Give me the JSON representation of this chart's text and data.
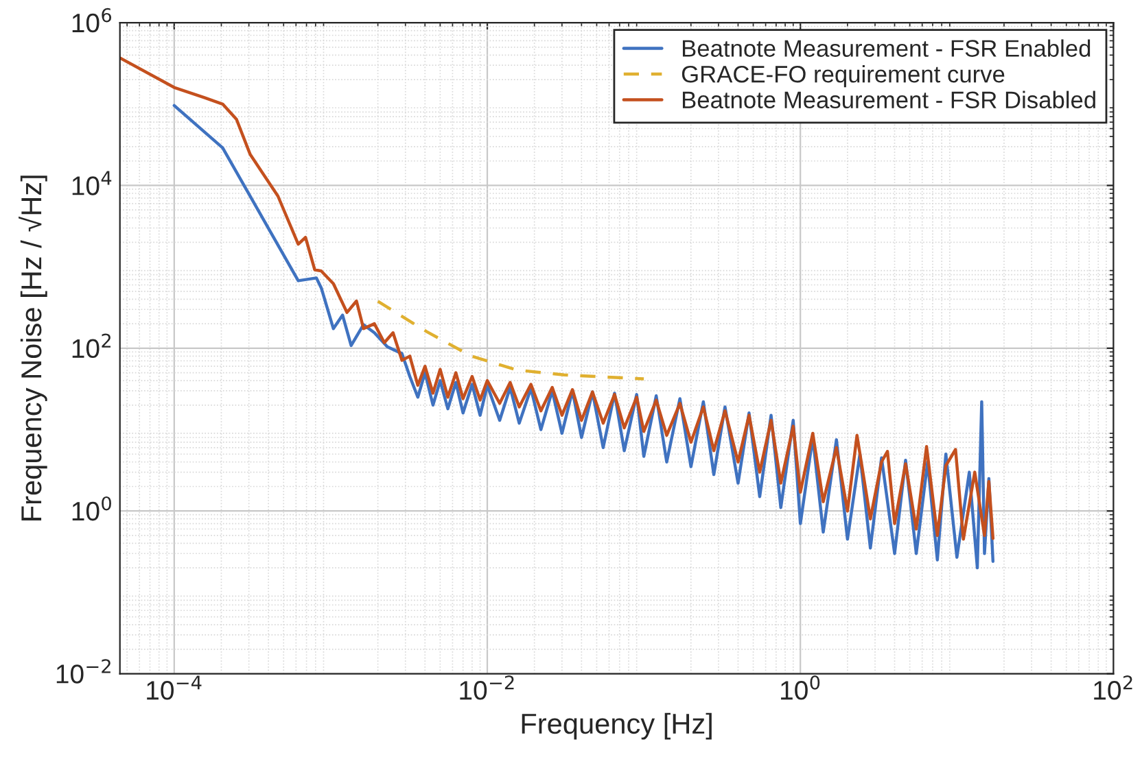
{
  "chart_data": {
    "type": "line",
    "xlabel": "Frequency [Hz]",
    "ylabel": "Frequency Noise [Hz / √Hz]",
    "log": "xy",
    "grid": true,
    "legend": "top right",
    "xlim": [
      4.5e-05,
      100
    ],
    "ylim": [
      0.01,
      1000000
    ],
    "xticks": [
      {
        "value": 0.0001,
        "label": "10$^{−4}$"
      },
      {
        "value": 0.01,
        "label": "10$^{−2}$"
      },
      {
        "value": 1,
        "label": "10$^{0}$"
      },
      {
        "value": 100,
        "label": "10$^{2}$"
      }
    ],
    "yticks": [
      {
        "value": 0.01,
        "label": "10$^{−2}$"
      },
      {
        "value": 1,
        "label": "10$^{0}$"
      },
      {
        "value": 100,
        "label": "10$^{2}$"
      },
      {
        "value": 10000,
        "label": "10$^{4}$"
      },
      {
        "value": 1000000,
        "label": "10$^{6}$"
      }
    ],
    "series": [
      {
        "name": "Beatnote Measurement - FSR Enabled",
        "color": "#3f72c0",
        "line_style": "solid",
        "x": [
          0.0001,
          0.000204,
          0.00062,
          0.00081,
          0.00087,
          0.00104,
          0.00119,
          0.00135,
          0.00162,
          0.0019,
          0.0023,
          0.00285,
          0.0032,
          0.0036,
          0.004,
          0.0045,
          0.005,
          0.0056,
          0.0063,
          0.007,
          0.008,
          0.009,
          0.01,
          0.012,
          0.014,
          0.016,
          0.019,
          0.022,
          0.026,
          0.03,
          0.035,
          0.04,
          0.047,
          0.055,
          0.065,
          0.075,
          0.09,
          0.1,
          0.12,
          0.14,
          0.17,
          0.2,
          0.24,
          0.28,
          0.33,
          0.4,
          0.47,
          0.55,
          0.65,
          0.75,
          0.9,
          1.0,
          1.2,
          1.4,
          1.7,
          2.0,
          2.4,
          2.8,
          3.3,
          4,
          4.7,
          5.5,
          6.5,
          7.5,
          8.5,
          10,
          12,
          13.5,
          14.4,
          15,
          16,
          17
        ],
        "values": [
          96000,
          29000,
          675,
          730,
          550,
          174,
          255,
          108,
          195,
          155,
          104,
          86,
          45,
          25,
          50,
          20,
          40,
          18,
          38,
          16,
          36,
          15,
          35,
          13,
          33,
          12,
          32,
          10,
          30,
          9,
          30,
          8,
          29,
          6,
          28,
          5.5,
          27,
          4.7,
          26,
          4,
          24,
          3.5,
          22,
          2.8,
          19,
          2.2,
          16,
          1.5,
          15,
          1.1,
          13,
          0.7,
          8,
          0.55,
          7.5,
          0.45,
          5,
          0.35,
          4.5,
          0.3,
          4.2,
          0.3,
          4,
          0.25,
          5,
          0.27,
          3,
          0.2,
          22,
          0.3,
          2.5,
          0.24
        ]
      },
      {
        "name": "GRACE-FO requirement curve",
        "color": "#e0b030",
        "line_style": "dashed",
        "x": [
          0.002,
          0.0041,
          0.0079,
          0.0155,
          0.031,
          0.1
        ],
        "values": [
          377,
          160,
          80,
          54,
          47,
          42
        ]
      },
      {
        "name": "Beatnote Measurement - FSR Disabled",
        "color": "#c4501e",
        "line_style": "solid",
        "x": [
          4.5e-05,
          0.0001,
          0.000156,
          0.000204,
          0.00025,
          0.000306,
          0.00046,
          0.00062,
          0.00069,
          0.00079,
          0.00087,
          0.00104,
          0.00127,
          0.00146,
          0.00162,
          0.0019,
          0.0022,
          0.0025,
          0.00285,
          0.0032,
          0.0036,
          0.004,
          0.0045,
          0.005,
          0.0056,
          0.0063,
          0.007,
          0.008,
          0.009,
          0.01,
          0.012,
          0.014,
          0.016,
          0.019,
          0.022,
          0.026,
          0.03,
          0.035,
          0.04,
          0.047,
          0.055,
          0.065,
          0.075,
          0.09,
          0.1,
          0.12,
          0.14,
          0.17,
          0.2,
          0.24,
          0.28,
          0.33,
          0.4,
          0.47,
          0.55,
          0.65,
          0.75,
          0.9,
          1.0,
          1.2,
          1.4,
          1.7,
          2.0,
          2.3,
          2.8,
          3.3,
          3.6,
          4,
          4.7,
          5.5,
          6.4,
          7.5,
          8.5,
          9.8,
          11,
          13,
          15,
          16,
          17
        ],
        "values": [
          370000,
          160000,
          120000,
          100000,
          65000,
          24000,
          7400,
          1900,
          2300,
          920,
          890,
          620,
          275,
          380,
          174,
          200,
          117,
          155,
          71,
          80,
          35,
          60,
          28,
          55,
          25,
          50,
          24,
          45,
          23,
          40,
          21,
          38,
          19,
          36,
          17,
          33,
          15,
          31,
          13,
          29,
          12,
          27,
          10.5,
          25,
          9.5,
          23,
          8.5,
          21,
          7,
          19,
          5.5,
          17,
          4,
          15,
          3,
          13,
          2.2,
          11,
          1.7,
          9,
          1.3,
          6,
          1.0,
          8.5,
          0.8,
          4,
          5.4,
          0.7,
          3.8,
          0.6,
          6.2,
          0.5,
          3.6,
          5.7,
          0.45,
          3,
          0.5,
          2.3,
          0.46
        ]
      }
    ]
  }
}
